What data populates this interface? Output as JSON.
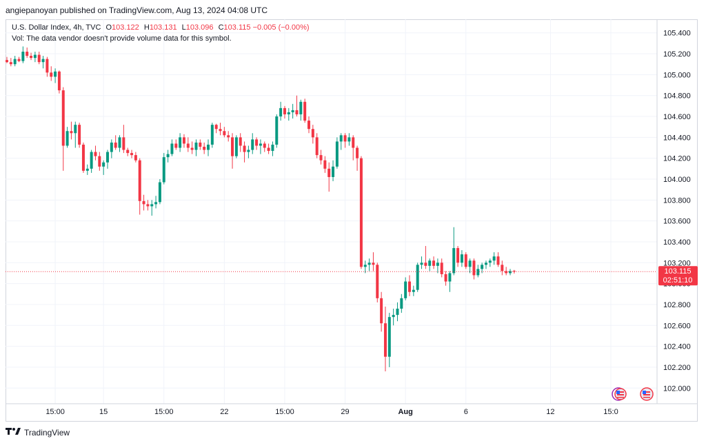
{
  "header": {
    "publisher_line": "angiepanoyan published on TradingView.com, Aug 13, 2024 04:08 UTC"
  },
  "legend": {
    "symbol": "U.S. Dollar Index, 4h, TVC",
    "o_label": "O",
    "o_value": "103.122",
    "h_label": "H",
    "h_value": "103.131",
    "l_label": "L",
    "l_value": "103.096",
    "c_label": "C",
    "c_value": "103.115",
    "change": "−0.005 (−0.00%)",
    "vol_note": "Vol: The data vendor doesn't provide volume data for this symbol."
  },
  "price_tag": {
    "price": "103.115",
    "countdown": "02:51:10"
  },
  "footer": {
    "brand": "TradingView"
  },
  "colors": {
    "up": "#089981",
    "down": "#f23645",
    "grid": "#f0f3fa",
    "text": "#131722"
  },
  "icons": [
    "event-flag-us-icon",
    "event-flag-us-icon-2"
  ],
  "chart_data": {
    "type": "candlestick",
    "symbol": "U.S. Dollar Index",
    "interval": "4h",
    "ylim": [
      101.85,
      105.53
    ],
    "y_ticks": [
      "105.400",
      "105.200",
      "105.000",
      "104.800",
      "104.600",
      "104.400",
      "104.200",
      "104.000",
      "103.800",
      "103.600",
      "103.400",
      "103.200",
      "103.000",
      "102.800",
      "102.600",
      "102.400",
      "102.200",
      "102.000"
    ],
    "x_ticks": [
      {
        "label": "15:00",
        "bar": 12,
        "bold": false
      },
      {
        "label": "15",
        "bar": 24,
        "bold": false
      },
      {
        "label": "15:00",
        "bar": 39,
        "bold": false
      },
      {
        "label": "22",
        "bar": 54,
        "bold": false
      },
      {
        "label": "15:00",
        "bar": 69,
        "bold": false
      },
      {
        "label": "29",
        "bar": 84,
        "bold": false
      },
      {
        "label": "Aug",
        "bar": 99,
        "bold": true
      },
      {
        "label": "6",
        "bar": 114,
        "bold": false
      },
      {
        "label": "12",
        "bar": 135,
        "bold": false
      },
      {
        "label": "15:0",
        "bar": 150,
        "bold": false
      }
    ],
    "last_price": 103.115,
    "candles": [
      [
        105.14,
        105.17,
        105.11,
        105.12
      ],
      [
        105.12,
        105.16,
        105.08,
        105.1
      ],
      [
        105.1,
        105.18,
        105.08,
        105.15
      ],
      [
        105.15,
        105.17,
        105.12,
        105.13
      ],
      [
        105.13,
        105.27,
        105.11,
        105.22
      ],
      [
        105.22,
        105.26,
        105.16,
        105.18
      ],
      [
        105.18,
        105.21,
        105.14,
        105.16
      ],
      [
        105.16,
        105.22,
        105.12,
        105.19
      ],
      [
        105.19,
        105.22,
        105.1,
        105.12
      ],
      [
        105.12,
        105.18,
        105.06,
        105.15
      ],
      [
        105.15,
        105.17,
        104.98,
        105.02
      ],
      [
        105.02,
        105.08,
        104.94,
        104.98
      ],
      [
        104.98,
        105.06,
        104.92,
        105.03
      ],
      [
        105.03,
        105.04,
        104.82,
        104.85
      ],
      [
        104.85,
        104.88,
        104.08,
        104.32
      ],
      [
        104.32,
        104.5,
        104.3,
        104.46
      ],
      [
        104.46,
        104.55,
        104.38,
        104.44
      ],
      [
        104.44,
        104.55,
        104.3,
        104.52
      ],
      [
        104.52,
        104.54,
        104.3,
        104.33
      ],
      [
        104.33,
        104.35,
        104.06,
        104.08
      ],
      [
        104.08,
        104.14,
        104.04,
        104.1
      ],
      [
        104.1,
        104.28,
        104.06,
        104.26
      ],
      [
        104.26,
        104.32,
        104.18,
        104.22
      ],
      [
        104.22,
        104.26,
        104.08,
        104.12
      ],
      [
        104.12,
        104.18,
        104.04,
        104.16
      ],
      [
        104.16,
        104.28,
        104.1,
        104.26
      ],
      [
        104.26,
        104.38,
        104.2,
        104.35
      ],
      [
        104.35,
        104.42,
        104.28,
        104.3
      ],
      [
        104.3,
        104.42,
        104.26,
        104.4
      ],
      [
        104.4,
        104.52,
        104.25,
        104.28
      ],
      [
        104.28,
        104.3,
        104.22,
        104.25
      ],
      [
        104.25,
        104.28,
        104.2,
        104.23
      ],
      [
        104.23,
        104.26,
        104.16,
        104.18
      ],
      [
        104.18,
        104.2,
        103.66,
        103.79
      ],
      [
        103.79,
        103.85,
        103.7,
        103.76
      ],
      [
        103.76,
        103.8,
        103.7,
        103.74
      ],
      [
        103.74,
        103.8,
        103.65,
        103.76
      ],
      [
        103.76,
        103.84,
        103.72,
        103.78
      ],
      [
        103.78,
        104.0,
        103.76,
        103.97
      ],
      [
        103.97,
        104.25,
        103.95,
        104.21
      ],
      [
        104.21,
        104.28,
        104.16,
        104.24
      ],
      [
        104.24,
        104.38,
        104.22,
        104.34
      ],
      [
        104.34,
        104.38,
        104.28,
        104.3
      ],
      [
        104.3,
        104.44,
        104.26,
        104.4
      ],
      [
        104.4,
        104.43,
        104.3,
        104.34
      ],
      [
        104.34,
        104.4,
        104.26,
        104.3
      ],
      [
        104.3,
        104.36,
        104.24,
        104.28
      ],
      [
        104.28,
        104.38,
        104.22,
        104.35
      ],
      [
        104.35,
        104.38,
        104.28,
        104.31
      ],
      [
        104.31,
        104.35,
        104.24,
        104.28
      ],
      [
        104.28,
        104.38,
        104.22,
        104.33
      ],
      [
        104.33,
        104.54,
        104.3,
        104.52
      ],
      [
        104.52,
        104.53,
        104.44,
        104.48
      ],
      [
        104.48,
        104.54,
        104.42,
        104.46
      ],
      [
        104.46,
        104.5,
        104.4,
        104.42
      ],
      [
        104.42,
        104.46,
        104.36,
        104.4
      ],
      [
        104.4,
        104.44,
        104.1,
        104.22
      ],
      [
        104.22,
        104.42,
        104.2,
        104.4
      ],
      [
        104.4,
        104.44,
        104.26,
        104.32
      ],
      [
        104.32,
        104.36,
        104.16,
        104.26
      ],
      [
        104.26,
        104.32,
        104.2,
        104.28
      ],
      [
        104.28,
        104.44,
        104.24,
        104.38
      ],
      [
        104.38,
        104.4,
        104.28,
        104.32
      ],
      [
        104.32,
        104.38,
        104.24,
        104.34
      ],
      [
        104.34,
        104.36,
        104.26,
        104.3
      ],
      [
        104.3,
        104.34,
        104.24,
        104.27
      ],
      [
        104.27,
        104.36,
        104.22,
        104.33
      ],
      [
        104.33,
        104.62,
        104.3,
        104.6
      ],
      [
        104.6,
        104.74,
        104.56,
        104.68
      ],
      [
        104.68,
        104.7,
        104.58,
        104.62
      ],
      [
        104.62,
        104.68,
        104.56,
        104.64
      ],
      [
        104.64,
        104.72,
        104.58,
        104.66
      ],
      [
        104.66,
        104.8,
        104.6,
        104.62
      ],
      [
        104.62,
        104.76,
        104.56,
        104.74
      ],
      [
        104.74,
        104.77,
        104.54,
        104.56
      ],
      [
        104.56,
        104.6,
        104.44,
        104.48
      ],
      [
        104.48,
        104.52,
        104.34,
        104.4
      ],
      [
        104.4,
        104.44,
        104.2,
        104.23
      ],
      [
        104.23,
        104.28,
        104.14,
        104.18
      ],
      [
        104.18,
        104.22,
        104.06,
        104.1
      ],
      [
        104.1,
        104.16,
        103.88,
        104.02
      ],
      [
        104.02,
        104.18,
        103.98,
        104.12
      ],
      [
        104.12,
        104.4,
        104.1,
        104.36
      ],
      [
        104.36,
        104.44,
        104.28,
        104.42
      ],
      [
        104.42,
        104.44,
        104.3,
        104.36
      ],
      [
        104.36,
        104.44,
        104.32,
        104.4
      ],
      [
        104.4,
        104.42,
        104.18,
        104.3
      ],
      [
        104.3,
        104.32,
        104.08,
        104.2
      ],
      [
        104.2,
        104.22,
        103.14,
        103.16
      ],
      [
        103.16,
        103.22,
        103.1,
        103.18
      ],
      [
        103.18,
        103.24,
        103.12,
        103.2
      ],
      [
        103.2,
        103.3,
        103.12,
        103.18
      ],
      [
        103.18,
        103.2,
        102.82,
        102.86
      ],
      [
        102.86,
        102.92,
        102.54,
        102.62
      ],
      [
        102.62,
        102.78,
        102.16,
        102.3
      ],
      [
        102.3,
        102.72,
        102.2,
        102.68
      ],
      [
        102.68,
        102.76,
        102.6,
        102.7
      ],
      [
        102.7,
        102.82,
        102.64,
        102.76
      ],
      [
        102.76,
        102.9,
        102.72,
        102.86
      ],
      [
        102.86,
        103.06,
        102.84,
        103.02
      ],
      [
        103.02,
        103.08,
        102.88,
        102.92
      ],
      [
        102.92,
        102.98,
        102.88,
        102.94
      ],
      [
        102.94,
        103.2,
        102.92,
        103.18
      ],
      [
        103.18,
        103.26,
        103.14,
        103.2
      ],
      [
        103.2,
        103.36,
        103.14,
        103.17
      ],
      [
        103.17,
        103.24,
        103.12,
        103.22
      ],
      [
        103.22,
        103.26,
        103.14,
        103.17
      ],
      [
        103.17,
        103.24,
        103.1,
        103.2
      ],
      [
        103.2,
        103.24,
        103.06,
        103.09
      ],
      [
        103.09,
        103.12,
        102.98,
        103.02
      ],
      [
        103.02,
        103.12,
        102.92,
        103.1
      ],
      [
        103.1,
        103.54,
        103.08,
        103.34
      ],
      [
        103.34,
        103.36,
        103.16,
        103.2
      ],
      [
        103.2,
        103.32,
        103.16,
        103.28
      ],
      [
        103.28,
        103.3,
        103.14,
        103.16
      ],
      [
        103.16,
        103.24,
        103.1,
        103.22
      ],
      [
        103.22,
        103.24,
        103.04,
        103.08
      ],
      [
        103.08,
        103.18,
        103.06,
        103.14
      ],
      [
        103.14,
        103.2,
        103.1,
        103.18
      ],
      [
        103.18,
        103.22,
        103.14,
        103.2
      ],
      [
        103.2,
        103.24,
        103.16,
        103.22
      ],
      [
        103.22,
        103.3,
        103.18,
        103.26
      ],
      [
        103.26,
        103.3,
        103.16,
        103.18
      ],
      [
        103.18,
        103.22,
        103.08,
        103.12
      ],
      [
        103.12,
        103.16,
        103.08,
        103.1
      ],
      [
        103.1,
        103.14,
        103.08,
        103.12
      ],
      [
        103.122,
        103.131,
        103.096,
        103.115
      ]
    ]
  }
}
